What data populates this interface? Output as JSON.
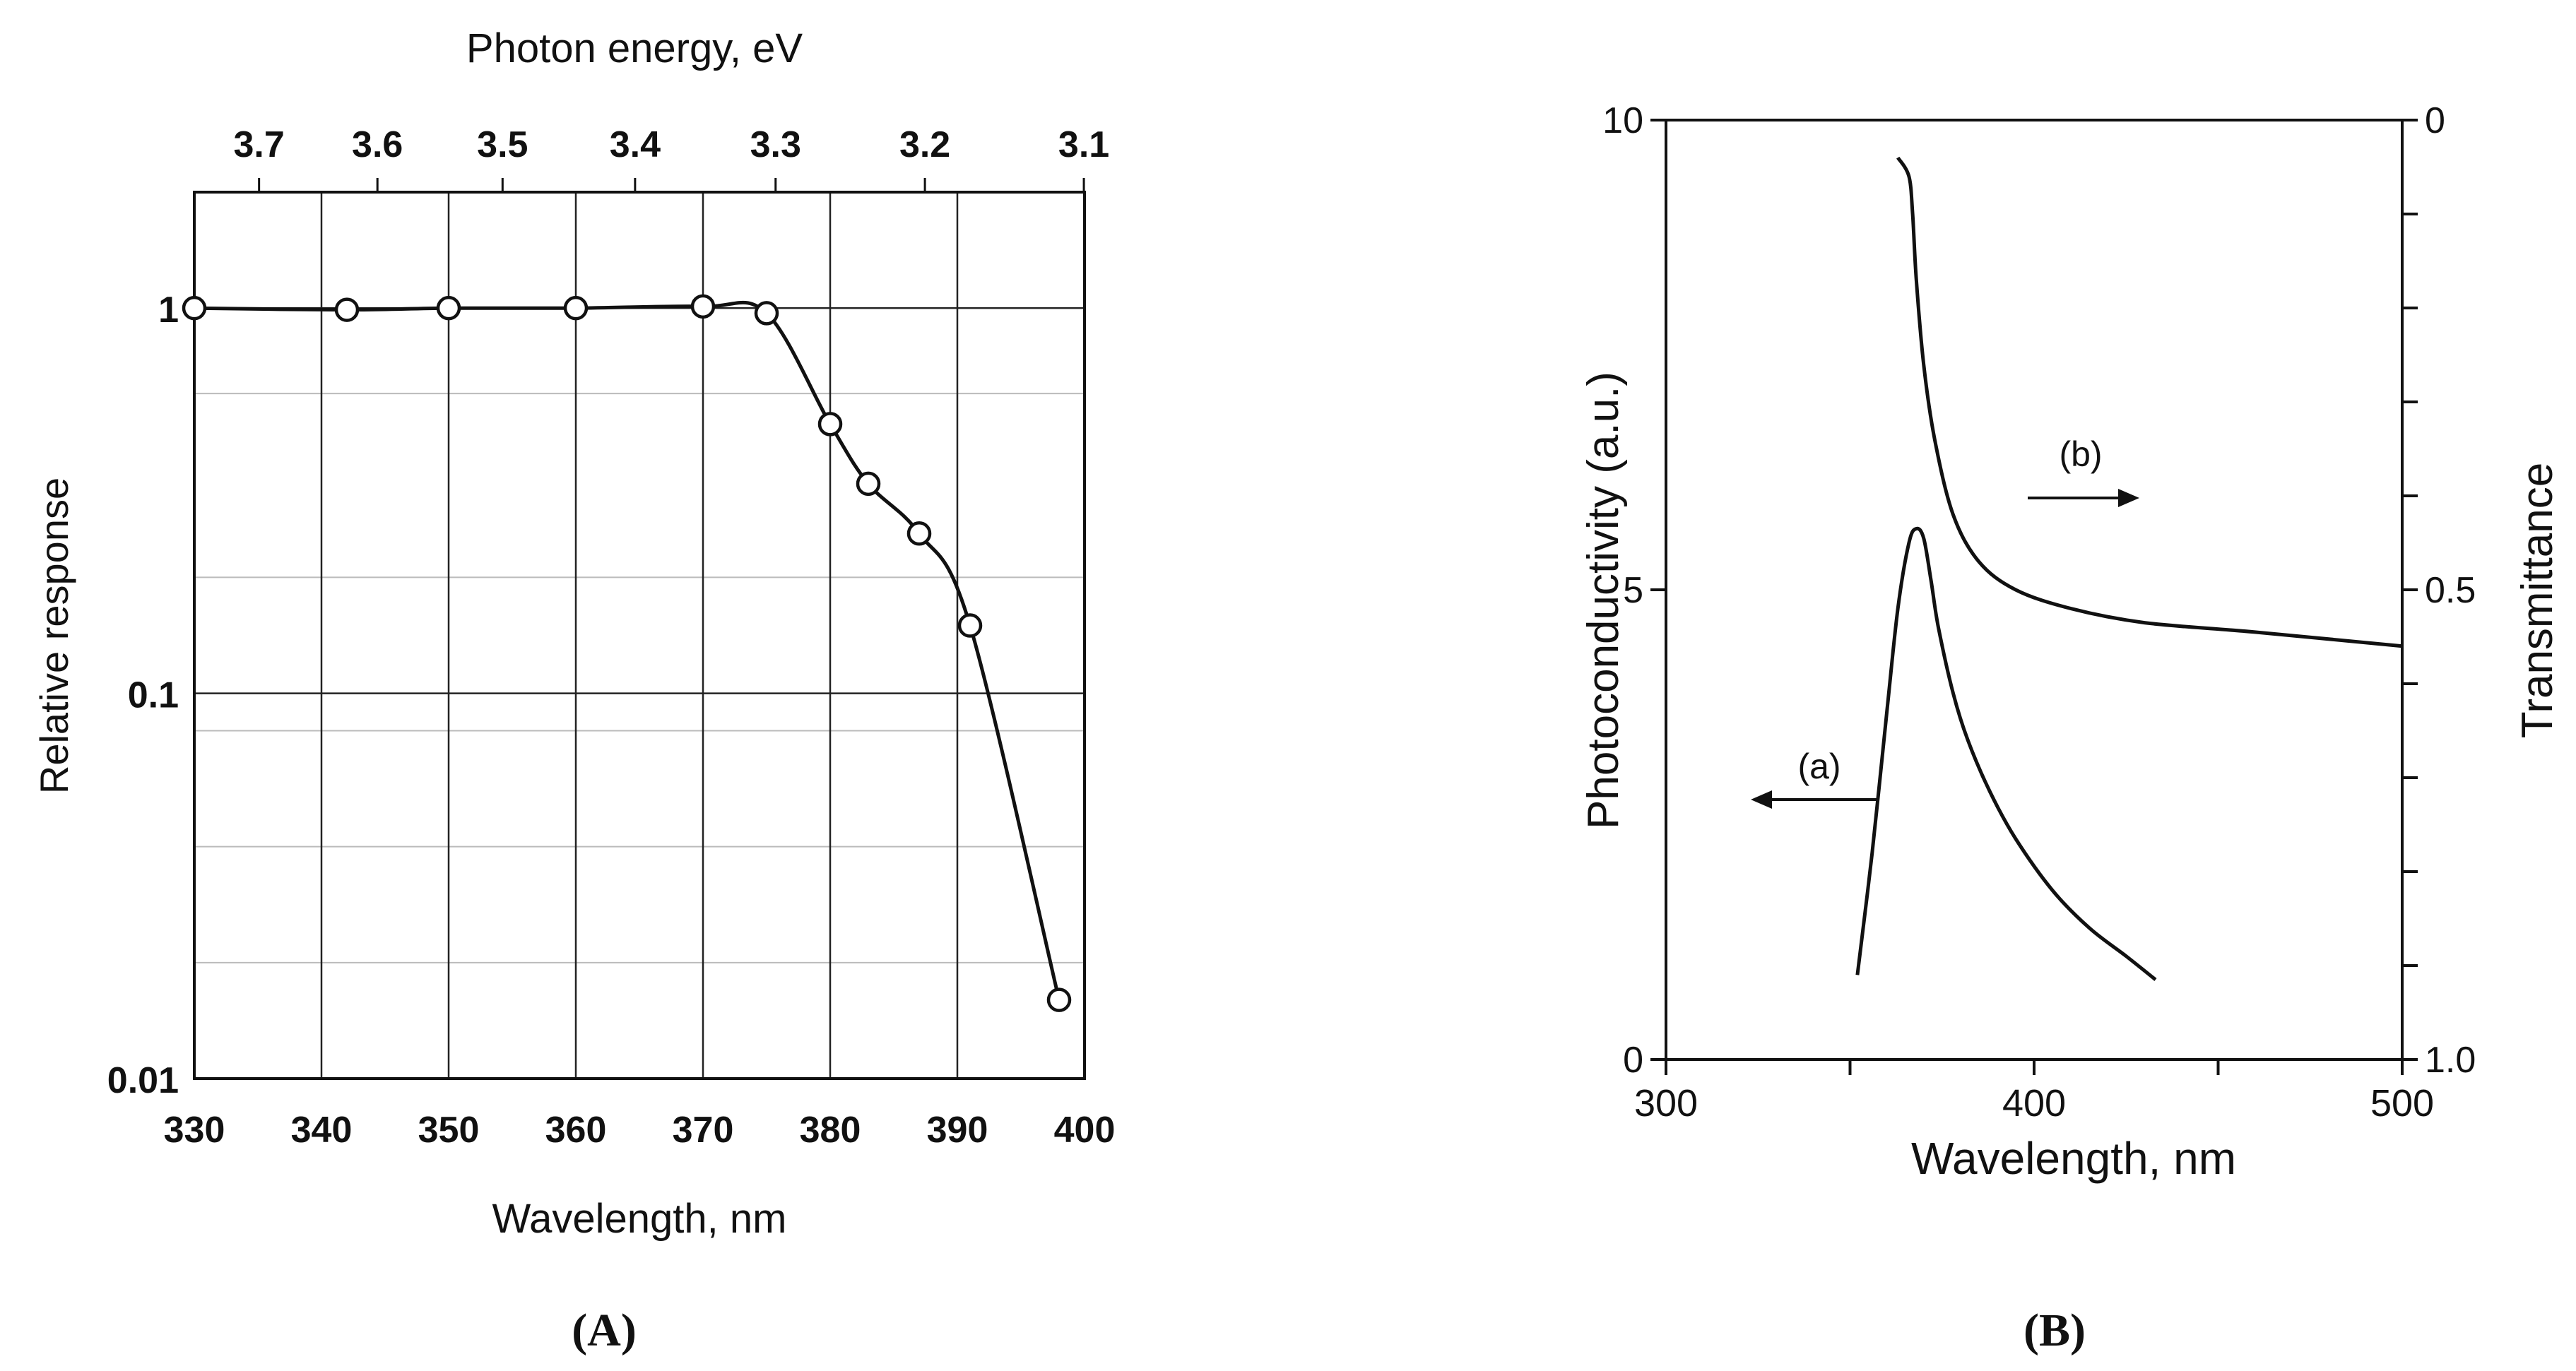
{
  "figure": {
    "panel_a_label": "(A)",
    "panel_b_label": "(B)"
  },
  "colors": {
    "ink": "#111111",
    "grid_major": "#222222",
    "grid_minor": "#bbbbbb",
    "marker_fill": "#ffffff",
    "background": "#ffffff"
  },
  "chart_data": [
    {
      "panel": "A",
      "type": "line",
      "markers": "open-circle",
      "yscale": "log",
      "xlabel": "Wavelength, nm",
      "ylabel": "Relative response",
      "top_xlabel": "Photon energy, eV",
      "xlim": [
        330,
        400
      ],
      "ylim": [
        0.01,
        2
      ],
      "xticks": [
        330,
        340,
        350,
        360,
        370,
        380,
        390,
        400
      ],
      "xtick_labels": [
        "330",
        "340",
        "350",
        "360",
        "370",
        "380",
        "390",
        "400"
      ],
      "yticks": [
        0.01,
        0.1,
        1
      ],
      "ytick_labels": [
        "0.01",
        "0.1",
        "1"
      ],
      "y_minor_gridlines": [
        0.02,
        0.04,
        0.08,
        0.2,
        0.6
      ],
      "top_ticks": [
        3.7,
        3.6,
        3.5,
        3.4,
        3.3,
        3.2,
        3.1
      ],
      "top_tick_labels": [
        "3.7",
        "3.6",
        "3.5",
        "3.4",
        "3.3",
        "3.2",
        "3.1"
      ],
      "grid": true,
      "series": [
        {
          "name": "relative response",
          "x": [
            330,
            342,
            350,
            360,
            370,
            375,
            380,
            383,
            387,
            391,
            398
          ],
          "y": [
            1.0,
            0.99,
            1.0,
            1.0,
            1.01,
            0.97,
            0.5,
            0.35,
            0.26,
            0.15,
            0.016
          ]
        }
      ]
    },
    {
      "panel": "B",
      "type": "line",
      "xlabel": "Wavelength, nm",
      "ylabel": "Photoconductivity (a.u.)",
      "ylabel_right": "Transmittance",
      "xlim": [
        300,
        500
      ],
      "ylim": [
        0,
        10
      ],
      "ylim_right": [
        1.0,
        0.0
      ],
      "xtick_labels": [
        "300",
        "400",
        "500"
      ],
      "xticks_labeled": [
        300,
        400,
        500
      ],
      "xticks_minor": [
        350,
        450
      ],
      "ytick_labels_left": [
        "0",
        "5",
        "10"
      ],
      "yticks_left": [
        0,
        5,
        10
      ],
      "ytick_labels_right": [
        "0",
        "0.5",
        "1.0"
      ],
      "yticks_right": [
        0,
        0.5,
        1.0
      ],
      "yticks_right_minor": [
        0.1,
        0.2,
        0.3,
        0.4,
        0.6,
        0.7,
        0.8,
        0.9
      ],
      "grid": false,
      "annotations": [
        {
          "text": "(a)",
          "arrow": "left",
          "refers_to": "Photoconductivity (a.u.)"
        },
        {
          "text": "(b)",
          "arrow": "right",
          "refers_to": "Transmittance"
        }
      ],
      "series": [
        {
          "name": "(a)",
          "axis": "left",
          "x": [
            352,
            356,
            360,
            363,
            366,
            368,
            370,
            372,
            374,
            378,
            382,
            388,
            395,
            405,
            415,
            425,
            433
          ],
          "y": [
            0.9,
            2.2,
            3.7,
            4.8,
            5.5,
            5.65,
            5.55,
            5.1,
            4.6,
            3.9,
            3.4,
            2.85,
            2.35,
            1.8,
            1.4,
            1.1,
            0.85
          ]
        },
        {
          "name": "(b)",
          "axis": "right",
          "x": [
            363,
            366,
            367,
            368,
            370,
            373,
            378,
            385,
            395,
            410,
            430,
            460,
            500
          ],
          "y": [
            0.04,
            0.06,
            0.1,
            0.17,
            0.26,
            0.34,
            0.42,
            0.47,
            0.5,
            0.52,
            0.535,
            0.545,
            0.56
          ]
        }
      ]
    }
  ]
}
